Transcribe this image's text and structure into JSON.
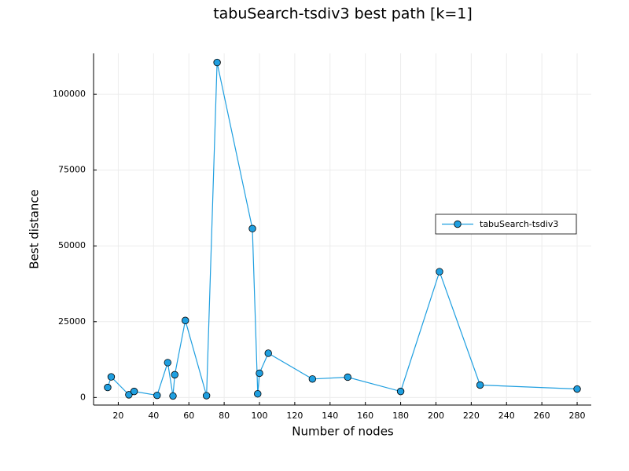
{
  "chart_data": {
    "type": "line",
    "title": "tabuSearch-tsdiv3 best path [k=1]",
    "xlabel": "Number of nodes",
    "ylabel": "Best distance",
    "xlim": [
      6,
      288
    ],
    "ylim": [
      -2500,
      113500
    ],
    "xticks": [
      20,
      40,
      60,
      80,
      100,
      120,
      140,
      160,
      180,
      200,
      220,
      240,
      260,
      280
    ],
    "yticks": [
      0,
      25000,
      50000,
      75000,
      100000
    ],
    "ytick_labels": [
      "0",
      "25000",
      "50000",
      "75000",
      "100000"
    ],
    "grid": true,
    "legend_position": "right",
    "series": [
      {
        "name": "tabuSearch-tsdiv3",
        "color": "#1f9fe0",
        "marker": "circle",
        "x": [
          14,
          16,
          26,
          29,
          42,
          48,
          51,
          52,
          58,
          70,
          76,
          96,
          99,
          100,
          105,
          130,
          150,
          180,
          202,
          225,
          280
        ],
        "y": [
          3300,
          6800,
          900,
          2000,
          700,
          11500,
          500,
          7500,
          25400,
          600,
          110500,
          55700,
          1200,
          8000,
          14600,
          6100,
          6700,
          2000,
          41500,
          4100,
          2800
        ]
      }
    ]
  }
}
